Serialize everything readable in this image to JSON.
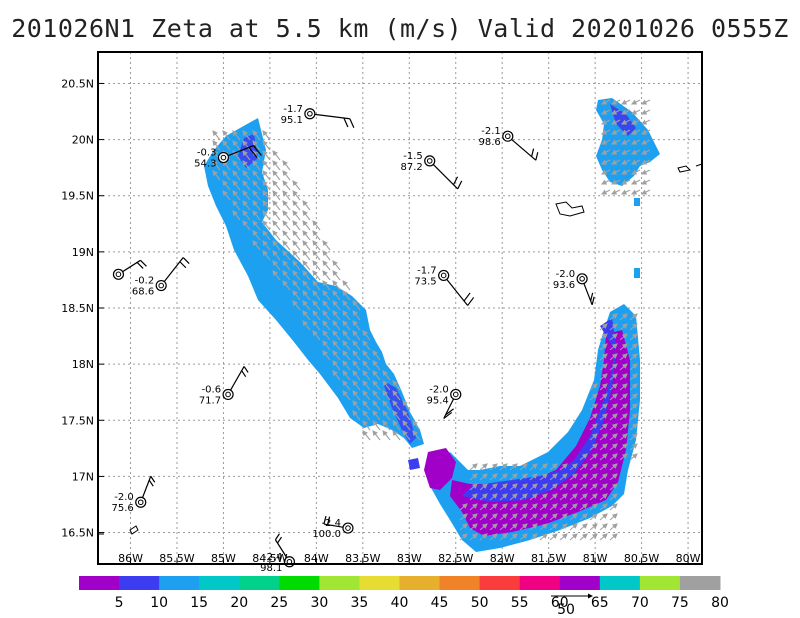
{
  "title": "201026N1 Zeta at 5.5 km (m/s) Valid 20201026 0555Z",
  "colors": {
    "light_blue": "#1ea0f0",
    "dark_blue": "#3c3cf0",
    "purple": "#a000c8",
    "arrow": "#a0a0a0",
    "barb": "#000000"
  },
  "chart_data": {
    "type": "map",
    "xlim": [
      -86.35,
      -79.85
    ],
    "ylim": [
      16.22,
      20.78
    ],
    "x_ticks": [
      {
        "value": -86.0,
        "label": "86W"
      },
      {
        "value": -85.5,
        "label": "85.5W"
      },
      {
        "value": -85.0,
        "label": "85W"
      },
      {
        "value": -84.5,
        "label": "84.5W"
      },
      {
        "value": -84.0,
        "label": "84W"
      },
      {
        "value": -83.5,
        "label": "83.5W"
      },
      {
        "value": -83.0,
        "label": "83W"
      },
      {
        "value": -82.5,
        "label": "82.5W"
      },
      {
        "value": -82.0,
        "label": "82W"
      },
      {
        "value": -81.5,
        "label": "81.5W"
      },
      {
        "value": -81.0,
        "label": "81W"
      },
      {
        "value": -80.5,
        "label": "80.5W"
      },
      {
        "value": -80.0,
        "label": "80W"
      }
    ],
    "y_ticks": [
      {
        "value": 16.5,
        "label": "16.5N"
      },
      {
        "value": 17.0,
        "label": "17N"
      },
      {
        "value": 17.5,
        "label": "17.5N"
      },
      {
        "value": 18.0,
        "label": "18N"
      },
      {
        "value": 18.5,
        "label": "18.5N"
      },
      {
        "value": 19.0,
        "label": "19N"
      },
      {
        "value": 19.5,
        "label": "19.5N"
      },
      {
        "value": 20.0,
        "label": "20N"
      },
      {
        "value": 20.5,
        "label": "20.5N"
      }
    ],
    "grid": true,
    "observations": [
      {
        "lon": -84.07,
        "lat": 20.23,
        "zeta": "-1.7",
        "pressure": "95.1"
      },
      {
        "lon": -85.0,
        "lat": 19.84,
        "zeta": "-0.3",
        "pressure": "54.3"
      },
      {
        "lon": -82.78,
        "lat": 19.81,
        "zeta": "-1.5",
        "pressure": "87.2"
      },
      {
        "lon": -81.94,
        "lat": 20.03,
        "zeta": "-2.1",
        "pressure": "98.6"
      },
      {
        "lon": -86.13,
        "lat": 18.8,
        "zeta": "",
        "pressure": ""
      },
      {
        "lon": -85.67,
        "lat": 18.7,
        "zeta": "-0.2",
        "pressure": "68.6"
      },
      {
        "lon": -82.63,
        "lat": 18.79,
        "zeta": "-1.7",
        "pressure": "73.5"
      },
      {
        "lon": -81.14,
        "lat": 18.76,
        "zeta": "-2.0",
        "pressure": "93.6"
      },
      {
        "lon": -84.95,
        "lat": 17.73,
        "zeta": "-0.6",
        "pressure": "71.7"
      },
      {
        "lon": -82.5,
        "lat": 17.73,
        "zeta": "-2.0",
        "pressure": "95.4"
      },
      {
        "lon": -85.89,
        "lat": 16.77,
        "zeta": "-2.0",
        "pressure": "75.6"
      },
      {
        "lon": -83.66,
        "lat": 16.54,
        "zeta": "-2.4",
        "pressure": "100.0"
      },
      {
        "lon": -84.29,
        "lat": 16.24,
        "zeta": "-2.4",
        "pressure": "98.1"
      }
    ],
    "colorbar": {
      "colors": [
        "#a000c8",
        "#3c3cf0",
        "#1ea0f0",
        "#00c8c8",
        "#00d28c",
        "#00dc00",
        "#a0e632",
        "#e6dc32",
        "#e6af2d",
        "#f08228",
        "#fa3c3c",
        "#f00082",
        "#a000c8",
        "#00c8c8",
        "#a0e632",
        "#a0a0a0"
      ],
      "labels": [
        "5",
        "10",
        "15",
        "20",
        "25",
        "30",
        "35",
        "40",
        "45",
        "50",
        "55",
        "60",
        "65",
        "70",
        "75",
        "80"
      ]
    },
    "reference_vector": {
      "label": "50"
    }
  }
}
